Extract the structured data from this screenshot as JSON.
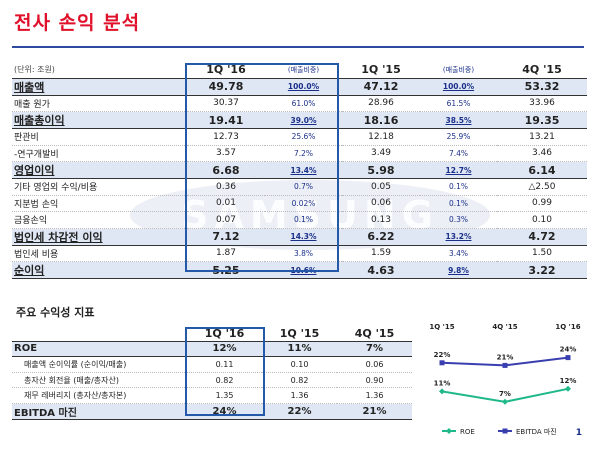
{
  "title": "전사 손익 분석",
  "watermark": "SAMSUNG",
  "income": {
    "unit": "(단위: 조원)",
    "periods": [
      "1Q '16",
      "1Q '15",
      "4Q '15"
    ],
    "share_label": "(매출비중)",
    "rows": [
      {
        "label": "매출액",
        "type": "major",
        "v": [
          "49.78",
          "47.12",
          "53.32"
        ],
        "p": [
          "100.0%",
          "100.0%"
        ]
      },
      {
        "label": "매출 원가",
        "type": "minor",
        "v": [
          "30.37",
          "28.96",
          "33.96"
        ],
        "p": [
          "61.0%",
          "61.5%"
        ]
      },
      {
        "label": "매출총이익",
        "type": "major",
        "v": [
          "19.41",
          "18.16",
          "19.35"
        ],
        "p": [
          "39.0%",
          "38.5%"
        ]
      },
      {
        "label": "판관비",
        "type": "minor",
        "v": [
          "12.73",
          "12.18",
          "13.21"
        ],
        "p": [
          "25.6%",
          "25.9%"
        ]
      },
      {
        "label": "-연구개발비",
        "type": "minor",
        "v": [
          "3.57",
          "3.49",
          "3.46"
        ],
        "p": [
          "7.2%",
          "7.4%"
        ]
      },
      {
        "label": "영업이익",
        "type": "major",
        "v": [
          "6.68",
          "5.98",
          "6.14"
        ],
        "p": [
          "13.4%",
          "12.7%"
        ]
      },
      {
        "label": "기타 영업외 수익/비용",
        "type": "minor",
        "v": [
          "0.36",
          "0.05",
          "△2.50"
        ],
        "p": [
          "0.7%",
          "0.1%"
        ]
      },
      {
        "label": "지분법 손익",
        "type": "minor",
        "v": [
          "0.01",
          "0.06",
          "0.99"
        ],
        "p": [
          "0.02%",
          "0.1%"
        ]
      },
      {
        "label": "금융손익",
        "type": "minor",
        "v": [
          "0.07",
          "0.13",
          "0.10"
        ],
        "p": [
          "0.1%",
          "0.3%"
        ]
      },
      {
        "label": "법인세 차감전 이익",
        "type": "major",
        "v": [
          "7.12",
          "6.22",
          "4.72"
        ],
        "p": [
          "14.3%",
          "13.2%"
        ]
      },
      {
        "label": "법인세 비용",
        "type": "minor",
        "v": [
          "1.87",
          "1.59",
          "1.50"
        ],
        "p": [
          "3.8%",
          "3.4%"
        ]
      },
      {
        "label": "순이익",
        "type": "major",
        "v": [
          "5.25",
          "4.63",
          "3.22"
        ],
        "p": [
          "10.6%",
          "9.8%"
        ]
      }
    ]
  },
  "profitability": {
    "title": "주요 수익성 지표",
    "periods": [
      "1Q '16",
      "1Q '15",
      "4Q '15"
    ],
    "rows": [
      {
        "label": "ROE",
        "type": "major",
        "v": [
          "12%",
          "11%",
          "7%"
        ]
      },
      {
        "label": "매출액 순이익률 (순이익/매출)",
        "type": "minor",
        "v": [
          "0.11",
          "0.10",
          "0.06"
        ]
      },
      {
        "label": "총자산 회전율 (매출/총자산)",
        "type": "minor",
        "v": [
          "0.82",
          "0.82",
          "0.90"
        ]
      },
      {
        "label": "재무 레버리지 (총자산/총자본)",
        "type": "minor",
        "v": [
          "1.35",
          "1.36",
          "1.36"
        ]
      },
      {
        "label": "EBITDA 마진",
        "type": "major",
        "v": [
          "24%",
          "22%",
          "21%"
        ]
      }
    ]
  },
  "chart_data": {
    "type": "line",
    "categories": [
      "1Q '15",
      "4Q '15",
      "1Q '16"
    ],
    "series": [
      {
        "name": "ROE",
        "values": [
          11,
          7,
          12
        ],
        "labels": [
          "11%",
          "7%",
          "12%"
        ],
        "color": "#1fb88a"
      },
      {
        "name": "EBITDA 마진",
        "values": [
          22,
          21,
          24
        ],
        "labels": [
          "22%",
          "21%",
          "24%"
        ],
        "color": "#3a3fb0"
      }
    ]
  },
  "page_number": "1"
}
